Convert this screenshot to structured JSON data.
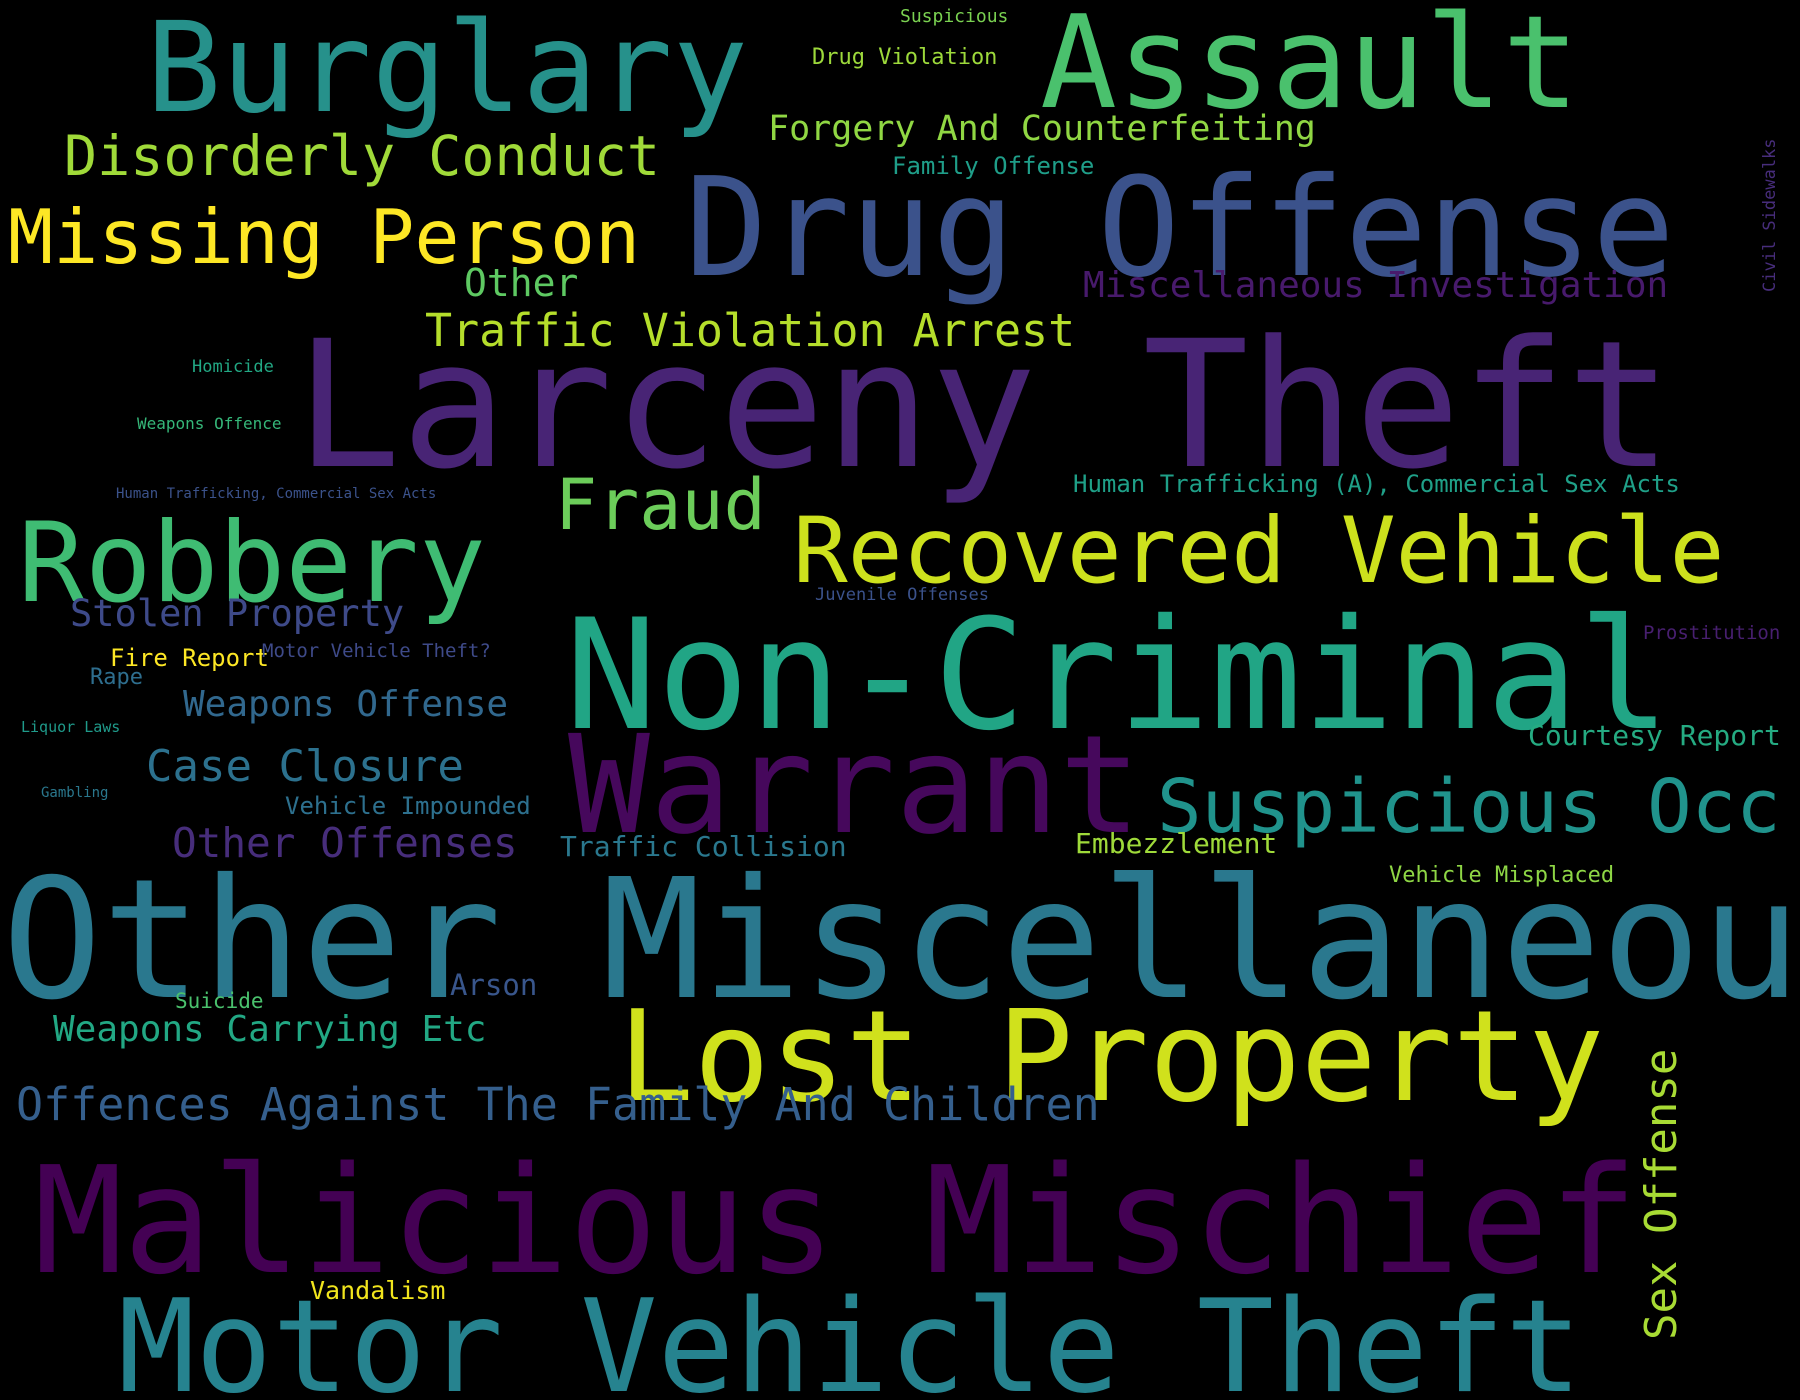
{
  "words": {
    "larceny_theft": {
      "text": "Larceny Theft",
      "color": "#482475"
    },
    "other_miscellaneous": {
      "text": "Other Miscellaneous",
      "color": "#2A788E"
    },
    "non_criminal": {
      "text": "Non-Criminal",
      "color": "#21A585"
    },
    "malicious_mischief": {
      "text": "Malicious Mischief",
      "color": "#440154"
    },
    "drug_offense": {
      "text": "Drug Offense",
      "color": "#3B528B"
    },
    "motor_vehicle_theft": {
      "text": "Motor Vehicle Theft",
      "color": "#26838F"
    },
    "lost_property": {
      "text": "Lost Property",
      "color": "#D0E11C"
    },
    "burglary": {
      "text": "Burglary",
      "color": "#26918B"
    },
    "assault": {
      "text": "Assault",
      "color": "#4AC16D"
    },
    "warrant": {
      "text": "Warrant",
      "color": "#46085C"
    },
    "robbery": {
      "text": "Robbery",
      "color": "#3FBC73"
    },
    "recovered_vehicle": {
      "text": "Recovered Vehicle",
      "color": "#CDE11D"
    },
    "missing_person": {
      "text": "Missing Person",
      "color": "#FDE725"
    },
    "suspicious_occ": {
      "text": "Suspicious Occ",
      "color": "#20938C"
    },
    "fraud": {
      "text": "Fraud",
      "color": "#6CCD5A"
    },
    "disorderly_conduct": {
      "text": "Disorderly Conduct",
      "color": "#A0DA39"
    },
    "sex_offense": {
      "text": "Sex Offense",
      "color": "#A8DB34"
    },
    "traffic_violation_arrest": {
      "text": "Traffic Violation Arrest",
      "color": "#B5DE2B"
    },
    "offences_against_family": {
      "text": "Offences Against The Family And Children",
      "color": "#355F8D"
    },
    "case_closure": {
      "text": "Case Closure",
      "color": "#2C718E"
    },
    "other_offenses": {
      "text": "Other Offenses",
      "color": "#472D7B"
    },
    "other": {
      "text": "Other",
      "color": "#5EC962"
    },
    "stolen_property": {
      "text": "Stolen Property",
      "color": "#3E4A89"
    },
    "weapons_offense": {
      "text": "Weapons Offense",
      "color": "#31688E"
    },
    "misc_investigation": {
      "text": "Miscellaneous Investigation",
      "color": "#481A6C"
    },
    "weapons_carrying": {
      "text": "Weapons Carrying Etc",
      "color": "#22A884"
    },
    "forgery": {
      "text": "Forgery And Counterfeiting",
      "color": "#90D743"
    },
    "arson": {
      "text": "Arson",
      "color": "#39568C"
    },
    "traffic_collision": {
      "text": "Traffic Collision",
      "color": "#2A788E"
    },
    "courtesy_report": {
      "text": "Courtesy Report",
      "color": "#25AB82"
    },
    "embezzlement": {
      "text": "Embezzlement",
      "color": "#9FDA3A"
    },
    "human_trafficking_a": {
      "text": "Human Trafficking (A), Commercial Sex Acts",
      "color": "#1FA088"
    },
    "vehicle_impounded": {
      "text": "Vehicle Impounded",
      "color": "#2D708E"
    },
    "family_offense": {
      "text": "Family Offense",
      "color": "#1F9E89"
    },
    "fire_report": {
      "text": "Fire Report",
      "color": "#FDE725"
    },
    "drug_violation": {
      "text": "Drug Violation",
      "color": "#9DD93B"
    },
    "vehicle_misplaced": {
      "text": "Vehicle Misplaced",
      "color": "#8ED645"
    },
    "vandalism": {
      "text": "Vandalism",
      "color": "#F1E51D"
    },
    "rape": {
      "text": "Rape",
      "color": "#2E6E8E"
    },
    "motor_vehicle_theft_q": {
      "text": "Motor Vehicle Theft?",
      "color": "#3E4A89"
    },
    "suicide": {
      "text": "Suicide",
      "color": "#4AC16D"
    },
    "prostitution": {
      "text": "Prostitution",
      "color": "#481F70"
    },
    "suspicious": {
      "text": "Suspicious",
      "color": "#7AD151"
    },
    "juvenile_offenses": {
      "text": "Juvenile Offenses",
      "color": "#3B528B"
    },
    "homicide": {
      "text": "Homicide",
      "color": "#22A884"
    },
    "weapons_offence": {
      "text": "Weapons Offence",
      "color": "#35B779"
    },
    "liquor_laws": {
      "text": "Liquor Laws",
      "color": "#1F9A8A"
    },
    "human_trafficking": {
      "text": "Human Trafficking, Commercial Sex Acts",
      "color": "#3B528B"
    },
    "gambling": {
      "text": "Gambling",
      "color": "#2A788E"
    },
    "civil_sidewalks": {
      "text": "Civil Sidewalks",
      "color": "#472D7B"
    }
  }
}
